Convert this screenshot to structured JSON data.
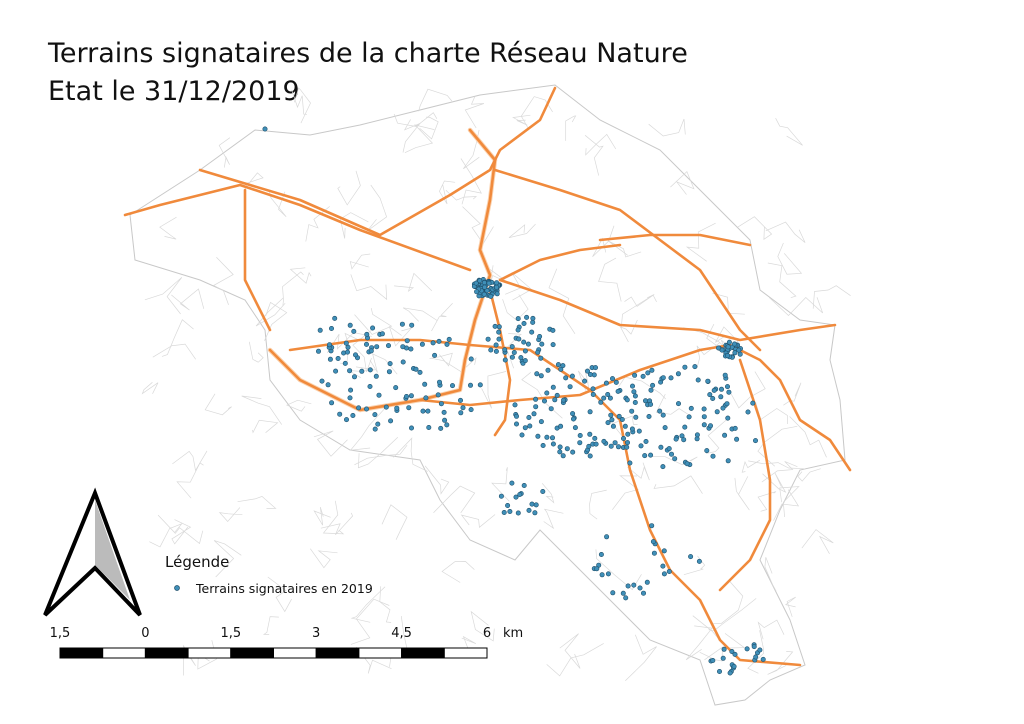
{
  "title": [
    "Terrains signataires de la charte Réseau Nature",
    "Etat le 31/12/2019"
  ],
  "legend": {
    "title": "Légende",
    "items": [
      "Terrains signataires en 2019"
    ]
  },
  "scale_bar": {
    "labels": [
      "1,5",
      "0",
      "1,5",
      "3",
      "4,5",
      "6"
    ],
    "unit": "km"
  }
}
